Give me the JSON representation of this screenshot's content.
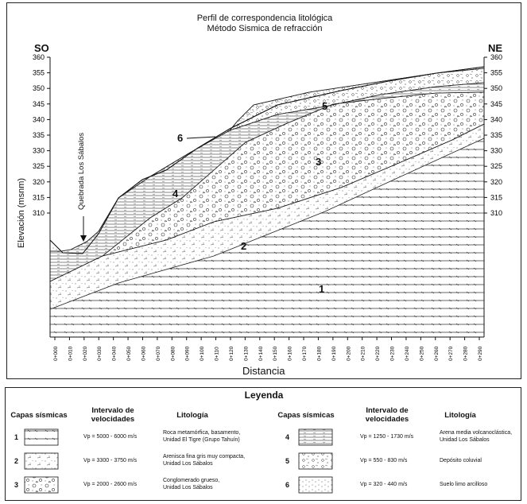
{
  "figure": {
    "title_line1": "Perfil de correspondencia litológica",
    "title_line2": "Método Sismica de refracción",
    "dir_left": "SO",
    "dir_right": "NE",
    "y_axis_label": "Elevación (msnm)",
    "x_axis_label": "Distancia",
    "annotation": "Quebrada Los Sábalos",
    "y_ticks_left": [
      "360",
      "355",
      "350",
      "345",
      "340",
      "335",
      "330",
      "325",
      "320",
      "315",
      "310"
    ],
    "y_ticks_right": [
      "360",
      "355",
      "350",
      "345",
      "340",
      "335",
      "330",
      "325",
      "320",
      "315",
      "310"
    ],
    "x_ticks": [
      "0+000",
      "0+010",
      "0+020",
      "0+030",
      "0+040",
      "0+050",
      "0+060",
      "0+070",
      "0+080",
      "0+090",
      "0+100",
      "0+110",
      "0+120",
      "0+130",
      "0+140",
      "0+150",
      "0+160",
      "0+170",
      "0+180",
      "0+190",
      "0+200",
      "0+210",
      "0+220",
      "0+230",
      "0+240",
      "0+250",
      "0+260",
      "0+270",
      "0+280",
      "0+290"
    ],
    "layer_labels": [
      {
        "id": "1",
        "text": "1"
      },
      {
        "id": "2",
        "text": "2"
      },
      {
        "id": "3",
        "text": "3"
      },
      {
        "id": "4",
        "text": "4"
      },
      {
        "id": "5",
        "text": "5"
      },
      {
        "id": "6",
        "text": "6"
      }
    ]
  },
  "legend": {
    "title": "Leyenda",
    "col_layers": "Capas sísmicas",
    "col_velocity_1": "Intervalo de",
    "col_velocity_2": "velocidades",
    "col_lithology": "Litología",
    "col_layers_b": "Capas sísmicas",
    "col_velocity_1b": "Intervalo de",
    "col_velocity_2b": "velocidades",
    "col_lithology_b": "Litología",
    "rows": [
      {
        "num": "1",
        "velocity": "Vp = 5000 - 6000 m/s",
        "lith1": "Roca metamórfica, basamento,",
        "lith2": "Unidad El Tigre (Grupo Tahuín)"
      },
      {
        "num": "2",
        "velocity": "Vp = 3300 - 3750 m/s",
        "lith1": "Arenisca fina gris muy compacta,",
        "lith2": "Unidad Los Sábalos"
      },
      {
        "num": "3",
        "velocity": "Vp = 2000 - 2600 m/s",
        "lith1": "Conglomerado grueso,",
        "lith2": "Unidad Los Sábalos"
      },
      {
        "num": "4",
        "velocity": "Vp = 1250 - 1730 m/s",
        "lith1": "Arena media volcanoclástica,",
        "lith2": "Unidad Los Sábalos"
      },
      {
        "num": "5",
        "velocity": "Vp = 550 - 830 m/s",
        "lith1": "Depósito coluvial",
        "lith2": ""
      },
      {
        "num": "6",
        "velocity": "Vp = 320 - 440 m/s",
        "lith1": "Suelo limo arcilloso",
        "lith2": ""
      }
    ]
  }
}
